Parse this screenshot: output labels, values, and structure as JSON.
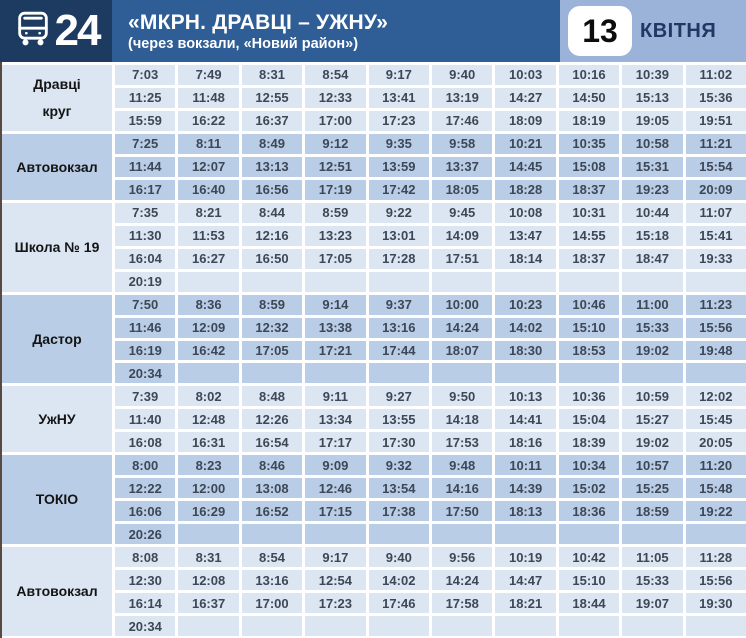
{
  "header": {
    "route_number": "24",
    "title": "«МКРН. ДРАВЦІ – УЖНУ»",
    "subtitle": "(через вокзали, «Новий район»)",
    "date": {
      "day": "13",
      "month": "КВІТНЯ"
    }
  },
  "colors": {
    "navy": "#1d3a60",
    "title_band": "#2f5e96",
    "date_area": "#9bb3d8",
    "light_cell": "#dce6f2",
    "dark_cell": "#b9cde6",
    "time_text": "#3d4756",
    "month_text": "#1f3864"
  },
  "icons": {
    "route_icon": "bus-icon"
  },
  "timetable": {
    "stops": [
      {
        "name": "Дравці\nкруг",
        "shade": "light",
        "rows": [
          [
            "7:03",
            "7:49",
            "8:31",
            "8:54",
            "9:17",
            "9:40",
            "10:03",
            "10:16",
            "10:39",
            "11:02"
          ],
          [
            "11:25",
            "11:48",
            "12:55",
            "12:33",
            "13:41",
            "13:19",
            "14:27",
            "14:50",
            "15:13",
            "15:36"
          ],
          [
            "15:59",
            "16:22",
            "16:37",
            "17:00",
            "17:23",
            "17:46",
            "18:09",
            "18:19",
            "19:05",
            "19:51"
          ]
        ]
      },
      {
        "name": "Автовокзал",
        "shade": "dark",
        "rows": [
          [
            "7:25",
            "8:11",
            "8:49",
            "9:12",
            "9:35",
            "9:58",
            "10:21",
            "10:35",
            "10:58",
            "11:21"
          ],
          [
            "11:44",
            "12:07",
            "13:13",
            "12:51",
            "13:59",
            "13:37",
            "14:45",
            "15:08",
            "15:31",
            "15:54"
          ],
          [
            "16:17",
            "16:40",
            "16:56",
            "17:19",
            "17:42",
            "18:05",
            "18:28",
            "18:37",
            "19:23",
            "20:09"
          ]
        ]
      },
      {
        "name": "Школа № 19",
        "shade": "light",
        "rows": [
          [
            "7:35",
            "8:21",
            "8:44",
            "8:59",
            "9:22",
            "9:45",
            "10:08",
            "10:31",
            "10:44",
            "11:07"
          ],
          [
            "11:30",
            "11:53",
            "12:16",
            "13:23",
            "13:01",
            "14:09",
            "13:47",
            "14:55",
            "15:18",
            "15:41"
          ],
          [
            "16:04",
            "16:27",
            "16:50",
            "17:05",
            "17:28",
            "17:51",
            "18:14",
            "18:37",
            "18:47",
            "19:33"
          ],
          [
            "20:19",
            "",
            "",
            "",
            "",
            "",
            "",
            "",
            "",
            ""
          ]
        ]
      },
      {
        "name": "Дастор",
        "shade": "dark",
        "rows": [
          [
            "7:50",
            "8:36",
            "8:59",
            "9:14",
            "9:37",
            "10:00",
            "10:23",
            "10:46",
            "11:00",
            "11:23"
          ],
          [
            "11:46",
            "12:09",
            "12:32",
            "13:38",
            "13:16",
            "14:24",
            "14:02",
            "15:10",
            "15:33",
            "15:56"
          ],
          [
            "16:19",
            "16:42",
            "17:05",
            "17:21",
            "17:44",
            "18:07",
            "18:30",
            "18:53",
            "19:02",
            "19:48"
          ],
          [
            "20:34",
            "",
            "",
            "",
            "",
            "",
            "",
            "",
            "",
            ""
          ]
        ]
      },
      {
        "name": "УжНУ",
        "shade": "light",
        "rows": [
          [
            "7:39",
            "8:02",
            "8:48",
            "9:11",
            "9:27",
            "9:50",
            "10:13",
            "10:36",
            "10:59",
            "12:02"
          ],
          [
            "11:40",
            "12:48",
            "12:26",
            "13:34",
            "13:55",
            "14:18",
            "14:41",
            "15:04",
            "15:27",
            "15:45"
          ],
          [
            "16:08",
            "16:31",
            "16:54",
            "17:17",
            "17:30",
            "17:53",
            "18:16",
            "18:39",
            "19:02",
            "20:05"
          ]
        ]
      },
      {
        "name": "ТОКІО",
        "shade": "dark",
        "rows": [
          [
            "8:00",
            "8:23",
            "8:46",
            "9:09",
            "9:32",
            "9:48",
            "10:11",
            "10:34",
            "10:57",
            "11:20"
          ],
          [
            "12:22",
            "12:00",
            "13:08",
            "12:46",
            "13:54",
            "14:16",
            "14:39",
            "15:02",
            "15:25",
            "15:48"
          ],
          [
            "16:06",
            "16:29",
            "16:52",
            "17:15",
            "17:38",
            "17:50",
            "18:13",
            "18:36",
            "18:59",
            "19:22"
          ],
          [
            "20:26",
            "",
            "",
            "",
            "",
            "",
            "",
            "",
            "",
            ""
          ]
        ]
      },
      {
        "name": "Автовокзал",
        "shade": "light",
        "rows": [
          [
            "8:08",
            "8:31",
            "8:54",
            "9:17",
            "9:40",
            "9:56",
            "10:19",
            "10:42",
            "11:05",
            "11:28"
          ],
          [
            "12:30",
            "12:08",
            "13:16",
            "12:54",
            "14:02",
            "14:24",
            "14:47",
            "15:10",
            "15:33",
            "15:56"
          ],
          [
            "16:14",
            "16:37",
            "17:00",
            "17:23",
            "17:46",
            "17:58",
            "18:21",
            "18:44",
            "19:07",
            "19:30"
          ],
          [
            "20:34",
            "",
            "",
            "",
            "",
            "",
            "",
            "",
            "",
            ""
          ]
        ]
      }
    ]
  }
}
